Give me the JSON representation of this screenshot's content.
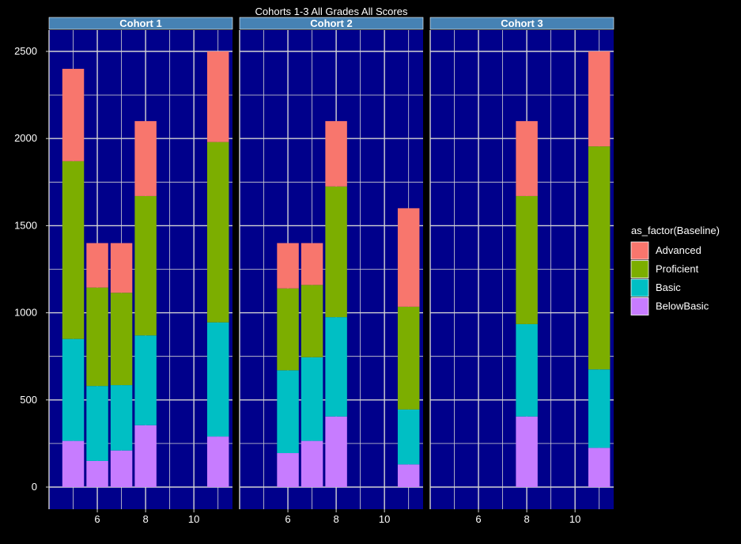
{
  "chart_data": {
    "type": "bar",
    "stacked": true,
    "faceted": true,
    "title": "Cohorts 1-3 All Grades All Scores",
    "xlabel": "",
    "ylabel": "",
    "ylim": [
      -130,
      2650
    ],
    "xlim": [
      4.0,
      11.6
    ],
    "x_ticks": [
      6,
      8,
      10
    ],
    "y_ticks": [
      0,
      500,
      1000,
      1500,
      2000,
      2500
    ],
    "grid": true,
    "legend": {
      "title": "as_factor(Baseline)",
      "placement": "right",
      "entries": [
        "Advanced",
        "Proficient",
        "Basic",
        "BelowBasic"
      ]
    },
    "colors": {
      "Advanced": "#F8766D",
      "Proficient": "#7CAE00",
      "Basic": "#00BFC4",
      "BelowBasic": "#C77CFF",
      "panel_background": "#00008B",
      "strip_background": "#4682B4",
      "grid": "#D3D3D3"
    },
    "stack_order_bottom_to_top": [
      "BelowBasic",
      "Basic",
      "Proficient",
      "Advanced"
    ],
    "facets": [
      {
        "label": "Cohort 1",
        "bars": [
          {
            "x": 5,
            "BelowBasic": 265,
            "Basic": 585,
            "Proficient": 1020,
            "Advanced": 530
          },
          {
            "x": 6,
            "BelowBasic": 150,
            "Basic": 430,
            "Proficient": 565,
            "Advanced": 255
          },
          {
            "x": 7,
            "BelowBasic": 210,
            "Basic": 375,
            "Proficient": 530,
            "Advanced": 285
          },
          {
            "x": 8,
            "BelowBasic": 355,
            "Basic": 515,
            "Proficient": 800,
            "Advanced": 430
          },
          {
            "x": 11,
            "BelowBasic": 290,
            "Basic": 655,
            "Proficient": 1035,
            "Advanced": 520
          }
        ]
      },
      {
        "label": "Cohort 2",
        "bars": [
          {
            "x": 6,
            "BelowBasic": 195,
            "Basic": 475,
            "Proficient": 470,
            "Advanced": 260
          },
          {
            "x": 7,
            "BelowBasic": 265,
            "Basic": 480,
            "Proficient": 415,
            "Advanced": 240
          },
          {
            "x": 8,
            "BelowBasic": 405,
            "Basic": 570,
            "Proficient": 750,
            "Advanced": 375
          },
          {
            "x": 11,
            "BelowBasic": 130,
            "Basic": 315,
            "Proficient": 590,
            "Advanced": 565
          }
        ]
      },
      {
        "label": "Cohort 3",
        "bars": [
          {
            "x": 8,
            "BelowBasic": 405,
            "Basic": 530,
            "Proficient": 735,
            "Advanced": 430
          },
          {
            "x": 11,
            "BelowBasic": 225,
            "Basic": 450,
            "Proficient": 1280,
            "Advanced": 545
          }
        ]
      }
    ]
  }
}
